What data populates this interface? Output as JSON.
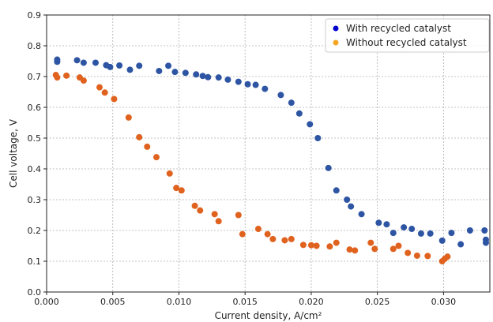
{
  "chart_data": {
    "type": "scatter",
    "xlabel": "Current density, A/cm²",
    "ylabel": "Cell voltage, V",
    "xlim": [
      0,
      0.0335
    ],
    "ylim": [
      0,
      0.9
    ],
    "xticks": [
      0,
      0.005,
      0.01,
      0.015,
      0.02,
      0.025,
      0.03
    ],
    "xtick_labels": [
      "0.000",
      "0.005",
      "0.010",
      "0.015",
      "0.020",
      "0.025",
      "0.030"
    ],
    "yticks": [
      0,
      0.1,
      0.2,
      0.3,
      0.4,
      0.5,
      0.6,
      0.7,
      0.8,
      0.9
    ],
    "ytick_labels": [
      "0.0",
      "0.1",
      "0.2",
      "0.3",
      "0.4",
      "0.5",
      "0.6",
      "0.7",
      "0.8",
      "0.9"
    ],
    "grid": true,
    "legend": {
      "placement": "top-right",
      "entries": [
        {
          "label": "With recycled catalyst",
          "color": "#0000cc"
        },
        {
          "label": "Without recycled catalyst",
          "color": "#f5a623"
        }
      ]
    },
    "series": [
      {
        "name": "With recycled catalyst",
        "color": "#2e55a3",
        "points": [
          [
            0.0008,
            0.755
          ],
          [
            0.0008,
            0.748
          ],
          [
            0.0023,
            0.753
          ],
          [
            0.0028,
            0.745
          ],
          [
            0.0037,
            0.745
          ],
          [
            0.0045,
            0.737
          ],
          [
            0.0048,
            0.731
          ],
          [
            0.0055,
            0.736
          ],
          [
            0.0063,
            0.722
          ],
          [
            0.007,
            0.735
          ],
          [
            0.0085,
            0.718
          ],
          [
            0.0092,
            0.735
          ],
          [
            0.0097,
            0.715
          ],
          [
            0.0105,
            0.712
          ],
          [
            0.0113,
            0.707
          ],
          [
            0.0118,
            0.702
          ],
          [
            0.0122,
            0.698
          ],
          [
            0.013,
            0.697
          ],
          [
            0.0137,
            0.69
          ],
          [
            0.0145,
            0.683
          ],
          [
            0.0152,
            0.675
          ],
          [
            0.0158,
            0.673
          ],
          [
            0.0165,
            0.66
          ],
          [
            0.0177,
            0.64
          ],
          [
            0.0185,
            0.615
          ],
          [
            0.0191,
            0.58
          ],
          [
            0.0199,
            0.545
          ],
          [
            0.0205,
            0.5
          ],
          [
            0.0213,
            0.403
          ],
          [
            0.0219,
            0.33
          ],
          [
            0.0227,
            0.3
          ],
          [
            0.023,
            0.278
          ],
          [
            0.0238,
            0.253
          ],
          [
            0.0251,
            0.225
          ],
          [
            0.0257,
            0.22
          ],
          [
            0.0262,
            0.192
          ],
          [
            0.027,
            0.21
          ],
          [
            0.0276,
            0.205
          ],
          [
            0.0283,
            0.19
          ],
          [
            0.029,
            0.19
          ],
          [
            0.0299,
            0.167
          ],
          [
            0.0306,
            0.192
          ],
          [
            0.0313,
            0.155
          ],
          [
            0.032,
            0.2
          ],
          [
            0.0331,
            0.2
          ],
          [
            0.0332,
            0.17
          ],
          [
            0.0332,
            0.16
          ]
        ]
      },
      {
        "name": "Without recycled catalyst",
        "color": "#e0621f",
        "points": [
          [
            0.0007,
            0.705
          ],
          [
            0.0008,
            0.697
          ],
          [
            0.0015,
            0.703
          ],
          [
            0.0025,
            0.697
          ],
          [
            0.0028,
            0.687
          ],
          [
            0.004,
            0.665
          ],
          [
            0.0044,
            0.648
          ],
          [
            0.0051,
            0.627
          ],
          [
            0.0062,
            0.567
          ],
          [
            0.007,
            0.503
          ],
          [
            0.0076,
            0.472
          ],
          [
            0.0083,
            0.438
          ],
          [
            0.0093,
            0.385
          ],
          [
            0.0098,
            0.338
          ],
          [
            0.0102,
            0.33
          ],
          [
            0.0112,
            0.28
          ],
          [
            0.0116,
            0.265
          ],
          [
            0.0127,
            0.253
          ],
          [
            0.013,
            0.23
          ],
          [
            0.0145,
            0.25
          ],
          [
            0.0148,
            0.188
          ],
          [
            0.016,
            0.205
          ],
          [
            0.0167,
            0.188
          ],
          [
            0.0171,
            0.172
          ],
          [
            0.018,
            0.168
          ],
          [
            0.0185,
            0.172
          ],
          [
            0.0194,
            0.153
          ],
          [
            0.02,
            0.152
          ],
          [
            0.0204,
            0.15
          ],
          [
            0.0214,
            0.148
          ],
          [
            0.0219,
            0.16
          ],
          [
            0.0229,
            0.138
          ],
          [
            0.0233,
            0.135
          ],
          [
            0.0245,
            0.16
          ],
          [
            0.0248,
            0.14
          ],
          [
            0.0262,
            0.14
          ],
          [
            0.0266,
            0.15
          ],
          [
            0.0273,
            0.127
          ],
          [
            0.028,
            0.118
          ],
          [
            0.0288,
            0.117
          ],
          [
            0.0299,
            0.1
          ],
          [
            0.0301,
            0.108
          ],
          [
            0.0303,
            0.115
          ]
        ]
      }
    ]
  }
}
